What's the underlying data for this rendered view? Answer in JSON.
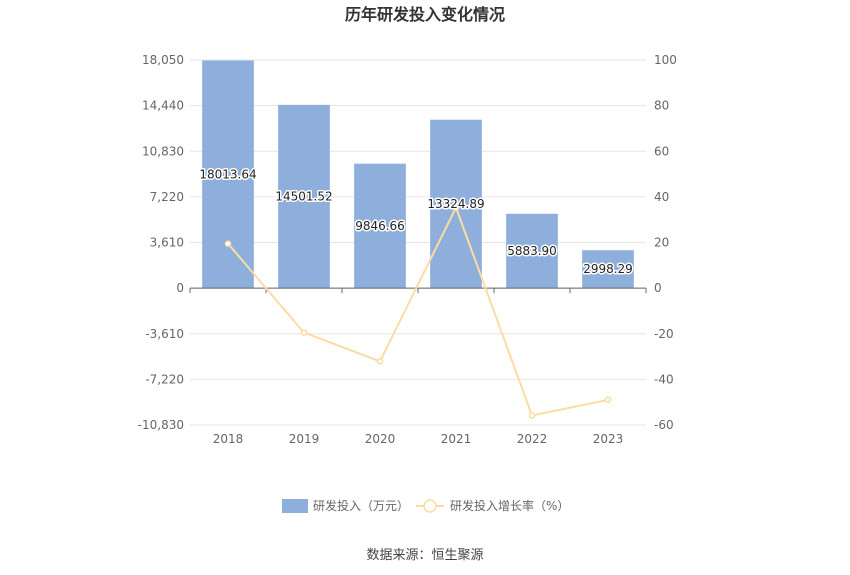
{
  "chart_data": {
    "type": "bar",
    "title": "历年研发投入变化情况",
    "categories": [
      "2018",
      "2019",
      "2020",
      "2021",
      "2022",
      "2023"
    ],
    "series": [
      {
        "name": "研发投入（万元）",
        "type": "bar",
        "axis": "left",
        "color": "#8eaedb",
        "values": [
          18013.64,
          14501.52,
          9846.66,
          13324.89,
          5883.9,
          2998.29
        ],
        "labels": [
          "18013.64",
          "14501.52",
          "9846.66",
          "13324.89",
          "5883.90",
          "2998.29"
        ]
      },
      {
        "name": "研发投入增长率（%）",
        "type": "line",
        "axis": "right",
        "color": "#fcdca4",
        "values": [
          19.5,
          -19.5,
          -32.1,
          35.3,
          -55.8,
          -49.0
        ]
      }
    ],
    "y_left": {
      "min": -10830,
      "max": 18050,
      "ticks": [
        18050,
        14440,
        10830,
        7220,
        3610,
        0,
        -3610,
        -7220,
        -10830
      ],
      "tick_labels": [
        "18,050",
        "14,440",
        "10,830",
        "7,220",
        "3,610",
        "0",
        "-3,610",
        "-7,220",
        "-10,830"
      ]
    },
    "y_right": {
      "min": -60,
      "max": 100,
      "ticks": [
        100,
        80,
        60,
        40,
        20,
        0,
        -20,
        -40,
        -60
      ],
      "tick_labels": [
        "100",
        "80",
        "60",
        "40",
        "20",
        "0",
        "-20",
        "-40",
        "-60"
      ]
    },
    "grid": true,
    "legend_position": "bottom"
  },
  "source": "数据来源：恒生聚源"
}
